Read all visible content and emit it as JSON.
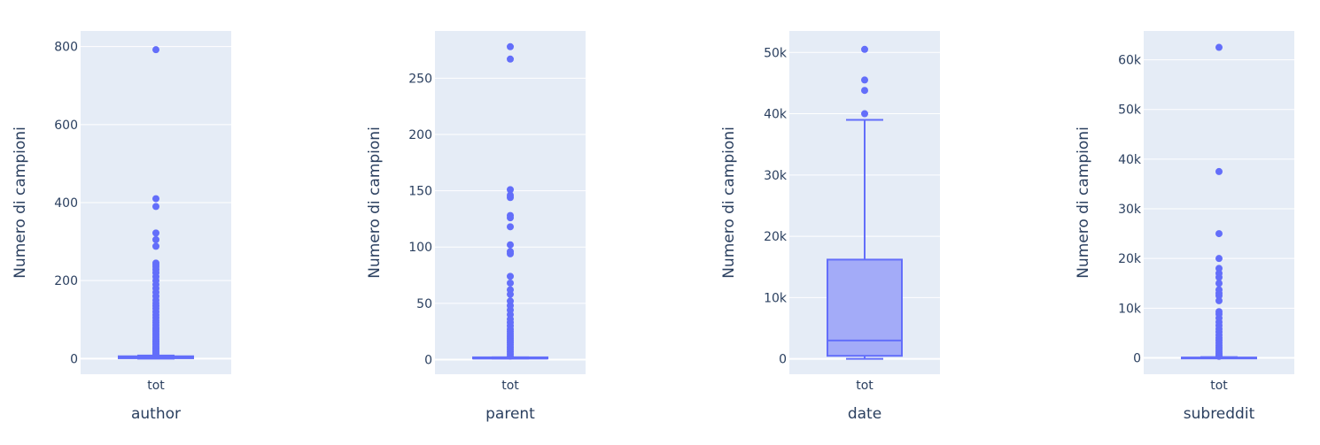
{
  "colors": {
    "plot_bg": "#e5ecf6",
    "grid": "#ffffff",
    "box_line": "#636efa",
    "box_fill": "#a3abf8",
    "text": "#2a3f5f"
  },
  "chart_data": [
    {
      "type": "box",
      "category": "tot",
      "xlabel": "author",
      "ylabel": "Numero di campioni",
      "ylim": [
        -40,
        840
      ],
      "yticks": [
        0,
        200,
        400,
        600,
        800
      ],
      "ytick_labels": [
        "0",
        "200",
        "400",
        "600",
        "800"
      ],
      "box": {
        "q1": 1,
        "median": 2,
        "q3": 6,
        "lowerfence": 0,
        "upperfence": 8
      },
      "outliers": [
        9,
        12,
        15,
        18,
        21,
        25,
        28,
        31,
        35,
        38,
        42,
        46,
        50,
        55,
        60,
        65,
        70,
        75,
        80,
        86,
        92,
        98,
        105,
        112,
        120,
        128,
        135,
        142,
        150,
        160,
        170,
        180,
        190,
        200,
        210,
        220,
        228,
        235,
        240,
        245,
        288,
        305,
        322,
        390,
        410,
        792
      ]
    },
    {
      "type": "box",
      "category": "tot",
      "xlabel": "parent",
      "ylabel": "Numero di campioni",
      "ylim": [
        -13,
        292
      ],
      "yticks": [
        0,
        50,
        100,
        150,
        200,
        250
      ],
      "ytick_labels": [
        "0",
        "50",
        "100",
        "150",
        "200",
        "250"
      ],
      "box": {
        "q1": 1,
        "median": 1,
        "q3": 2,
        "lowerfence": 1,
        "upperfence": 2
      },
      "outliers": [
        3,
        5,
        7,
        9,
        11,
        13,
        15,
        17,
        19,
        21,
        23,
        25,
        27,
        30,
        33,
        36,
        40,
        44,
        48,
        52,
        58,
        62,
        68,
        74,
        94,
        96,
        102,
        118,
        126,
        128,
        144,
        146,
        151,
        267,
        278
      ]
    },
    {
      "type": "box",
      "category": "tot",
      "xlabel": "date",
      "ylabel": "Numero di campioni",
      "ylim": [
        -2500,
        53500
      ],
      "yticks": [
        0,
        10000,
        20000,
        30000,
        40000,
        50000
      ],
      "ytick_labels": [
        "0",
        "10k",
        "20k",
        "30k",
        "40k",
        "50k"
      ],
      "box": {
        "q1": 500,
        "median": 3000,
        "q3": 16200,
        "lowerfence": 0,
        "upperfence": 39000
      },
      "outliers": [
        40000,
        43800,
        45500,
        50500
      ]
    },
    {
      "type": "box",
      "category": "tot",
      "xlabel": "subreddit",
      "ylabel": "Numero di campioni",
      "ylim": [
        -3300,
        65800
      ],
      "yticks": [
        0,
        10000,
        20000,
        30000,
        40000,
        50000,
        60000
      ],
      "ytick_labels": [
        "0",
        "10k",
        "20k",
        "30k",
        "40k",
        "50k",
        "60k"
      ],
      "box": {
        "q1": 5,
        "median": 10,
        "q3": 60,
        "lowerfence": 1,
        "upperfence": 150
      },
      "outliers": [
        300,
        600,
        900,
        1300,
        1700,
        2100,
        2500,
        3000,
        3500,
        4000,
        4600,
        5200,
        5800,
        6500,
        7200,
        8000,
        8800,
        9300,
        11500,
        12500,
        13000,
        13700,
        15000,
        16200,
        17000,
        18000,
        20000,
        25000,
        37500,
        62500
      ]
    }
  ]
}
